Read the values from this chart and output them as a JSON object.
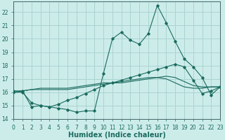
{
  "title": "",
  "xlabel": "Humidex (Indice chaleur)",
  "ylabel": "",
  "background_color": "#ccecea",
  "grid_color": "#aad4d0",
  "line_color": "#1a6b5e",
  "x_values": [
    0,
    1,
    2,
    3,
    4,
    5,
    6,
    7,
    8,
    9,
    10,
    11,
    12,
    13,
    14,
    15,
    16,
    17,
    18,
    19,
    20,
    21,
    22,
    23
  ],
  "series1": [
    16.1,
    16.1,
    14.9,
    15.0,
    14.9,
    14.8,
    14.7,
    14.5,
    14.6,
    14.6,
    17.4,
    20.0,
    20.5,
    19.9,
    19.6,
    20.4,
    22.5,
    21.2,
    19.8,
    18.5,
    17.9,
    17.1,
    15.8,
    16.4
  ],
  "series2": [
    16.0,
    16.0,
    15.2,
    15.0,
    14.9,
    15.1,
    15.4,
    15.6,
    15.9,
    16.2,
    16.5,
    16.7,
    16.9,
    17.1,
    17.3,
    17.5,
    17.7,
    17.9,
    18.1,
    17.9,
    16.9,
    15.9,
    16.1,
    16.4
  ],
  "series3": [
    16.0,
    16.1,
    16.2,
    16.2,
    16.2,
    16.2,
    16.2,
    16.3,
    16.4,
    16.5,
    16.6,
    16.7,
    16.7,
    16.8,
    16.9,
    17.0,
    17.1,
    17.2,
    17.1,
    16.8,
    16.5,
    16.4,
    16.4,
    16.4
  ],
  "series4": [
    16.0,
    16.1,
    16.2,
    16.3,
    16.3,
    16.3,
    16.3,
    16.4,
    16.5,
    16.6,
    16.7,
    16.7,
    16.8,
    16.9,
    17.0,
    17.1,
    17.1,
    17.0,
    16.7,
    16.4,
    16.3,
    16.3,
    16.4,
    16.4
  ],
  "xlim": [
    0,
    23
  ],
  "ylim": [
    14.0,
    22.8
  ],
  "yticks": [
    14,
    15,
    16,
    17,
    18,
    19,
    20,
    21,
    22
  ],
  "xticks": [
    0,
    1,
    2,
    3,
    4,
    5,
    6,
    7,
    8,
    9,
    10,
    11,
    12,
    13,
    14,
    15,
    16,
    17,
    18,
    19,
    20,
    21,
    22,
    23
  ],
  "xlabel_fontsize": 7,
  "tick_fontsize": 5.5
}
